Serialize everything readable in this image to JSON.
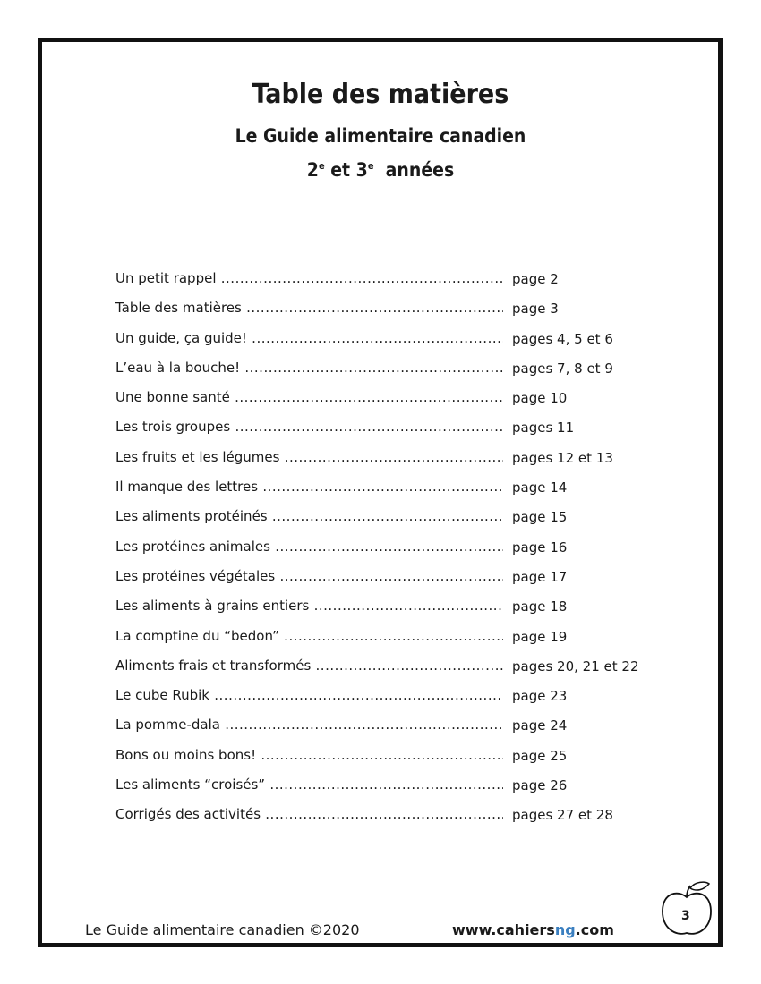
{
  "header": {
    "title": "Table des matières",
    "subtitle": "Le Guide alimentaire canadien",
    "grade_a": "2",
    "sup_a": "e",
    "grade_mid": " et 3",
    "sup_b": "e",
    "grade_end": "  années"
  },
  "toc": [
    {
      "label": "Un petit rappel",
      "page": "page 2"
    },
    {
      "label": "Table des matières",
      "page": "page 3"
    },
    {
      "label": "Un guide, ça guide!",
      "page": "pages 4, 5 et 6"
    },
    {
      "label": "L’eau à la bouche!",
      "page": "pages 7, 8 et 9"
    },
    {
      "label": "Une bonne santé",
      "page": "page 10"
    },
    {
      "label": "Les trois groupes",
      "page": "pages 11"
    },
    {
      "label": "Les fruits et les légumes",
      "page": "pages 12 et 13"
    },
    {
      "label": "Il manque des lettres",
      "page": "page 14"
    },
    {
      "label": "Les aliments protéinés",
      "page": "page 15"
    },
    {
      "label": "Les protéines animales",
      "page": "page 16"
    },
    {
      "label": "Les protéines végétales",
      "page": "page 17"
    },
    {
      "label": "Les aliments à grains entiers",
      "page": "page 18"
    },
    {
      "label": "La comptine du “bedon”",
      "page": "page 19"
    },
    {
      "label": "Aliments frais et transformés",
      "page": "pages 20, 21 et 22"
    },
    {
      "label": "Le cube Rubik",
      "page": "page 23"
    },
    {
      "label": "La pomme-dala",
      "page": "page 24"
    },
    {
      "label": "Bons ou moins bons!",
      "page": "page 25"
    },
    {
      "label": "Les aliments “croisés”",
      "page": "page 26"
    },
    {
      "label": "Corrigés des activités",
      "page": "pages 27 et 28"
    }
  ],
  "footer": {
    "left": "Le Guide alimentaire canadien ©2020",
    "url_a": "www.cahiers",
    "url_b": "ng",
    "url_c": ".com",
    "page_number": "3",
    "accent": "#3a7fc0",
    "icon": "apple-icon"
  }
}
